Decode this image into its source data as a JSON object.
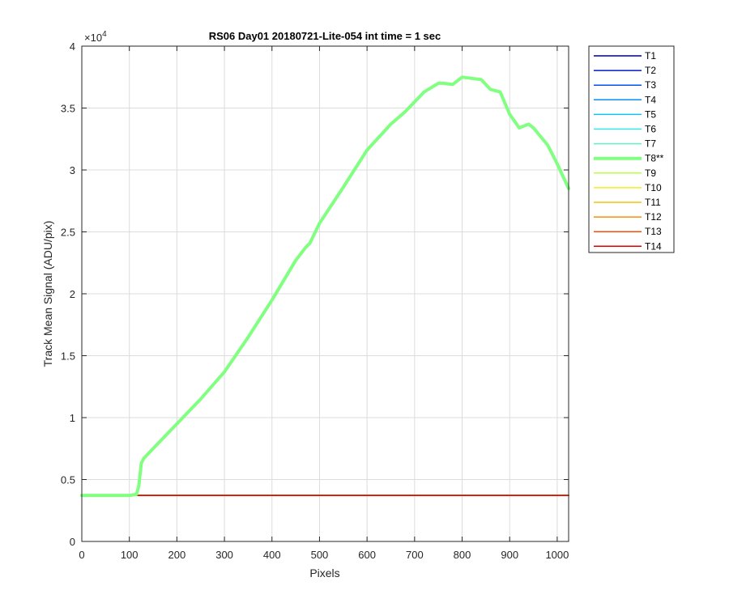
{
  "chart_data": {
    "type": "line",
    "title": "RS06 Day01 20180721-Lite-054 int time = 1 sec",
    "xlabel": "Pixels",
    "ylabel": "Track Mean Signal (ADU/pix)",
    "y_multiplier": "×10",
    "y_multiplier_exp": "4",
    "xlim": [
      0,
      1024
    ],
    "ylim": [
      0,
      40000
    ],
    "x_ticks": [
      0,
      100,
      200,
      300,
      400,
      500,
      600,
      700,
      800,
      900,
      1000
    ],
    "x_tick_labels": [
      "0",
      "100",
      "200",
      "300",
      "400",
      "500",
      "600",
      "700",
      "800",
      "900",
      "1000"
    ],
    "y_ticks": [
      0,
      5000,
      10000,
      15000,
      20000,
      25000,
      30000,
      35000,
      40000
    ],
    "y_tick_labels": [
      "0",
      "0.5",
      "1",
      "1.5",
      "2",
      "2.5",
      "3",
      "3.5",
      "4"
    ],
    "grid": true,
    "legend_position": "outside-right-top",
    "series": [
      {
        "name": "T1",
        "color": "#000080",
        "x": [
          0,
          1024
        ],
        "y": [
          3720,
          3720
        ]
      },
      {
        "name": "T2",
        "color": "#0019c2",
        "x": [
          0,
          1024
        ],
        "y": [
          3720,
          3720
        ]
      },
      {
        "name": "T3",
        "color": "#0050f0",
        "x": [
          0,
          1024
        ],
        "y": [
          3720,
          3720
        ]
      },
      {
        "name": "T4",
        "color": "#0a8ef5",
        "x": [
          0,
          1024
        ],
        "y": [
          3720,
          3720
        ]
      },
      {
        "name": "T5",
        "color": "#12c2f2",
        "x": [
          0,
          1024
        ],
        "y": [
          3720,
          3720
        ]
      },
      {
        "name": "T6",
        "color": "#2eeaea",
        "x": [
          0,
          1024
        ],
        "y": [
          3720,
          3720
        ]
      },
      {
        "name": "T7",
        "color": "#63f0c7",
        "x": [
          0,
          1024
        ],
        "y": [
          3720,
          3720
        ]
      },
      {
        "name": "T9",
        "color": "#b8ff45",
        "x": [
          0,
          1024
        ],
        "y": [
          3720,
          3720
        ]
      },
      {
        "name": "T10",
        "color": "#f2ed20",
        "x": [
          0,
          1024
        ],
        "y": [
          3720,
          3720
        ]
      },
      {
        "name": "T11",
        "color": "#f5c010",
        "x": [
          0,
          1024
        ],
        "y": [
          3720,
          3720
        ]
      },
      {
        "name": "T12",
        "color": "#ff8c0a",
        "x": [
          0,
          1024
        ],
        "y": [
          3720,
          3720
        ]
      },
      {
        "name": "T13",
        "color": "#ff4a05",
        "x": [
          0,
          1024
        ],
        "y": [
          3720,
          3720
        ]
      },
      {
        "name": "T14",
        "color": "#e00000",
        "x": [
          0,
          1024
        ],
        "y": [
          3720,
          3720
        ]
      },
      {
        "name": "T8**",
        "color": "#80ff80",
        "bold": true,
        "x": [
          0,
          100,
          115,
          120,
          125,
          130,
          150,
          200,
          250,
          300,
          350,
          400,
          450,
          470,
          480,
          500,
          550,
          600,
          650,
          680,
          700,
          720,
          750,
          760,
          780,
          800,
          820,
          840,
          860,
          880,
          900,
          920,
          940,
          950,
          980,
          1000,
          1024
        ],
        "y": [
          3720,
          3720,
          3800,
          4500,
          6300,
          6700,
          7500,
          9500,
          11500,
          13700,
          16500,
          19500,
          22700,
          23700,
          24100,
          25700,
          28600,
          31600,
          33700,
          34700,
          35500,
          36300,
          37000,
          37000,
          36900,
          37500,
          37400,
          37300,
          36500,
          36300,
          34500,
          33400,
          33700,
          33400,
          32000,
          30500,
          28500
        ]
      }
    ],
    "legend_order": [
      "T1",
      "T2",
      "T3",
      "T4",
      "T5",
      "T6",
      "T7",
      "T8**",
      "T9",
      "T10",
      "T11",
      "T12",
      "T13",
      "T14"
    ]
  }
}
